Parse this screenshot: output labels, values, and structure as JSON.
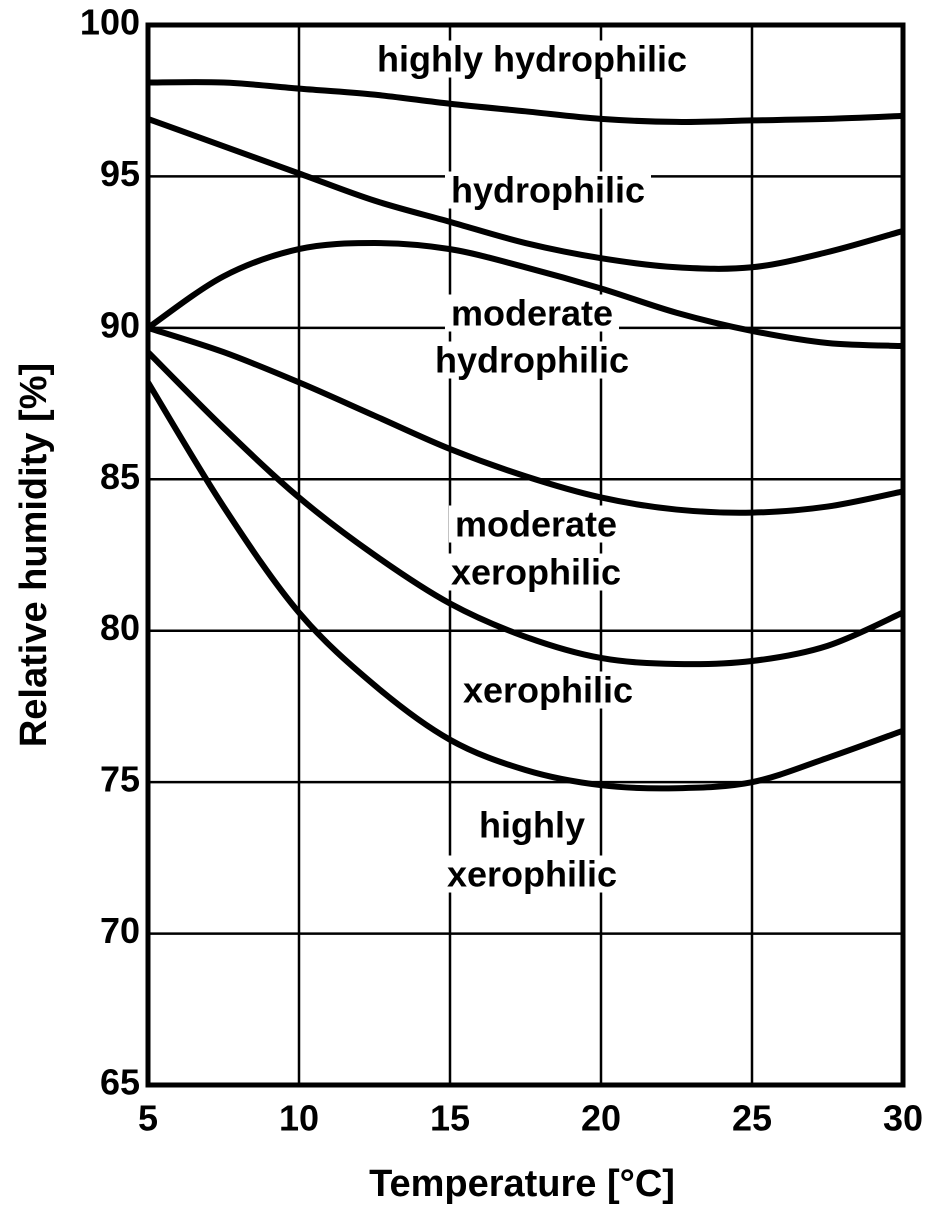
{
  "chart_data": {
    "type": "line",
    "x_label": "Temperature [°C]",
    "y_label": "Relative humidity [%]",
    "x": [
      5,
      7.5,
      10,
      12.5,
      15,
      17.5,
      20,
      22.5,
      25,
      27.5,
      30
    ],
    "series": [
      {
        "color": "#000000",
        "values": [
          98.1,
          98.1,
          97.9,
          97.7,
          97.4,
          97.15,
          96.9,
          96.8,
          96.85,
          96.9,
          97.0
        ]
      },
      {
        "color": "#000000",
        "values": [
          96.9,
          96.0,
          95.1,
          94.2,
          93.5,
          92.8,
          92.3,
          92.0,
          92.0,
          92.5,
          93.2
        ]
      },
      {
        "color": "#000000",
        "values": [
          90.0,
          91.7,
          92.6,
          92.8,
          92.6,
          92.0,
          91.3,
          90.5,
          89.9,
          89.5,
          89.4
        ]
      },
      {
        "color": "#000000",
        "values": [
          90.0,
          89.2,
          88.2,
          87.1,
          86.0,
          85.1,
          84.4,
          84.0,
          83.9,
          84.1,
          84.6
        ]
      },
      {
        "color": "#000000",
        "values": [
          89.2,
          86.7,
          84.4,
          82.5,
          80.9,
          79.8,
          79.1,
          78.9,
          79.0,
          79.5,
          80.6
        ]
      },
      {
        "color": "#000000",
        "values": [
          88.2,
          84.1,
          80.6,
          78.2,
          76.4,
          75.4,
          74.9,
          74.8,
          75.0,
          75.8,
          76.7
        ]
      }
    ],
    "annotations": [
      [
        "highly  hydrophilic"
      ],
      [
        "hydrophilic"
      ],
      [
        "moderate",
        "hydrophilic"
      ],
      [
        "moderate",
        "xerophilic"
      ],
      [
        "xerophilic"
      ],
      [
        "highly",
        "xerophilic"
      ]
    ],
    "xlim": [
      5,
      30
    ],
    "xticks": [
      5,
      10,
      15,
      20,
      25,
      30
    ],
    "ylim": [
      65,
      100
    ],
    "yticks": [
      65,
      70,
      75,
      80,
      85,
      90,
      95,
      100
    ],
    "grid": true
  }
}
